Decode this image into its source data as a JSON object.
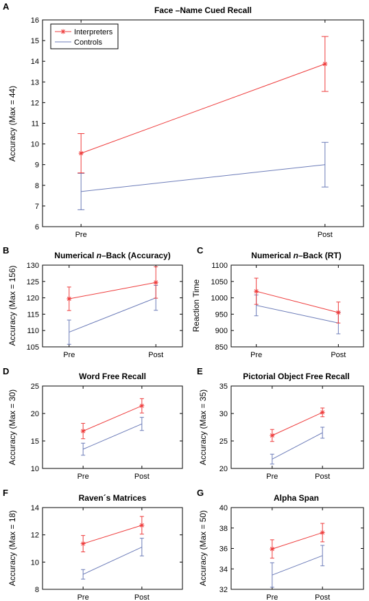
{
  "colors": {
    "interpreters": "#ee3b3b",
    "controls": "#6b7bb8"
  },
  "chart_data": [
    {
      "panel": "A",
      "type": "line",
      "title": "Face –Name Cued Recall",
      "ylabel": "Accuracy (Max = 44)",
      "xlabel": "",
      "categories": [
        "Pre",
        "Post"
      ],
      "ylim": [
        6,
        16
      ],
      "yticks": [
        6,
        7,
        8,
        9,
        10,
        11,
        12,
        13,
        14,
        15,
        16
      ],
      "legend": {
        "position": "top-left",
        "entries": [
          "Interpreters",
          "Controls"
        ]
      },
      "series": [
        {
          "name": "Interpreters",
          "values": [
            9.55,
            13.87
          ],
          "err": [
            0.95,
            1.33
          ],
          "marker": "star"
        },
        {
          "name": "Controls",
          "values": [
            7.7,
            9.0
          ],
          "err": [
            0.88,
            1.08
          ],
          "marker": "none"
        }
      ]
    },
    {
      "panel": "B",
      "type": "line",
      "title": "Numerical n–Back (Accuracy)",
      "title_parts": [
        "Numerical ",
        "n",
        "–Back (Accuracy)"
      ],
      "ylabel": "Accuracy (Max = 156)",
      "xlabel": "",
      "categories": [
        "Pre",
        "Post"
      ],
      "ylim": [
        105,
        130
      ],
      "yticks": [
        105,
        110,
        115,
        120,
        125,
        130
      ],
      "series": [
        {
          "name": "Interpreters",
          "values": [
            119.7,
            124.7
          ],
          "err": [
            3.6,
            4.8
          ],
          "marker": "star"
        },
        {
          "name": "Controls",
          "values": [
            109.5,
            120.0
          ],
          "err": [
            3.7,
            3.8
          ],
          "marker": "none"
        }
      ]
    },
    {
      "panel": "C",
      "type": "line",
      "title": "Numerical   n–Back (RT)",
      "title_parts": [
        "Numerical   ",
        "n",
        "–Back (RT)"
      ],
      "ylabel": "Reaction Time",
      "xlabel": "",
      "categories": [
        "Pre",
        "Post"
      ],
      "ylim": [
        850,
        1100
      ],
      "yticks": [
        850,
        900,
        950,
        1000,
        1050,
        1100
      ],
      "series": [
        {
          "name": "Interpreters",
          "values": [
            1020,
            955
          ],
          "err": [
            40,
            32
          ],
          "marker": "star"
        },
        {
          "name": "Controls",
          "values": [
            977,
            923
          ],
          "err": [
            32,
            33
          ],
          "marker": "none"
        }
      ]
    },
    {
      "panel": "D",
      "type": "line",
      "title": "Word Free Recall",
      "ylabel": "Accuracy (Max = 30)",
      "xlabel": "",
      "categories": [
        "Pre",
        "Post"
      ],
      "ylim": [
        10,
        25
      ],
      "yticks": [
        10,
        15,
        20,
        25
      ],
      "series": [
        {
          "name": "Interpreters",
          "values": [
            16.8,
            21.4
          ],
          "err": [
            1.4,
            1.3
          ],
          "marker": "star"
        },
        {
          "name": "Controls",
          "values": [
            13.5,
            18.1
          ],
          "err": [
            1.1,
            1.2
          ],
          "marker": "none"
        }
      ]
    },
    {
      "panel": "E",
      "type": "line",
      "title": "Pictorial Object Free Recall",
      "ylabel": "Accuracy (Max = 35)",
      "xlabel": "",
      "categories": [
        "Pre",
        "Post"
      ],
      "ylim": [
        20,
        35
      ],
      "yticks": [
        20,
        25,
        30,
        35
      ],
      "series": [
        {
          "name": "Interpreters",
          "values": [
            26.0,
            30.2
          ],
          "err": [
            1.1,
            0.8
          ],
          "marker": "star"
        },
        {
          "name": "Controls",
          "values": [
            21.7,
            26.5
          ],
          "err": [
            0.9,
            1.0
          ],
          "marker": "none"
        }
      ]
    },
    {
      "panel": "F",
      "type": "line",
      "title": "Raven´s Matrices",
      "ylabel": "Accuracy (Max = 18)",
      "xlabel": "",
      "categories": [
        "Pre",
        "Post"
      ],
      "ylim": [
        8,
        14
      ],
      "yticks": [
        8,
        10,
        12,
        14
      ],
      "series": [
        {
          "name": "Interpreters",
          "values": [
            11.35,
            12.7
          ],
          "err": [
            0.6,
            0.65
          ],
          "marker": "star"
        },
        {
          "name": "Controls",
          "values": [
            9.1,
            11.1
          ],
          "err": [
            0.35,
            0.65
          ],
          "marker": "none"
        }
      ]
    },
    {
      "panel": "G",
      "type": "line",
      "title": "Alpha Span",
      "ylabel": "Accuracy (Max = 50)",
      "xlabel": "",
      "categories": [
        "Pre",
        "Post"
      ],
      "ylim": [
        32,
        40
      ],
      "yticks": [
        32,
        34,
        36,
        38,
        40
      ],
      "series": [
        {
          "name": "Interpreters",
          "values": [
            35.95,
            37.55
          ],
          "err": [
            0.9,
            0.9
          ],
          "marker": "star"
        },
        {
          "name": "Controls",
          "values": [
            33.4,
            35.3
          ],
          "err": [
            1.2,
            1.0
          ],
          "marker": "none"
        }
      ]
    }
  ]
}
